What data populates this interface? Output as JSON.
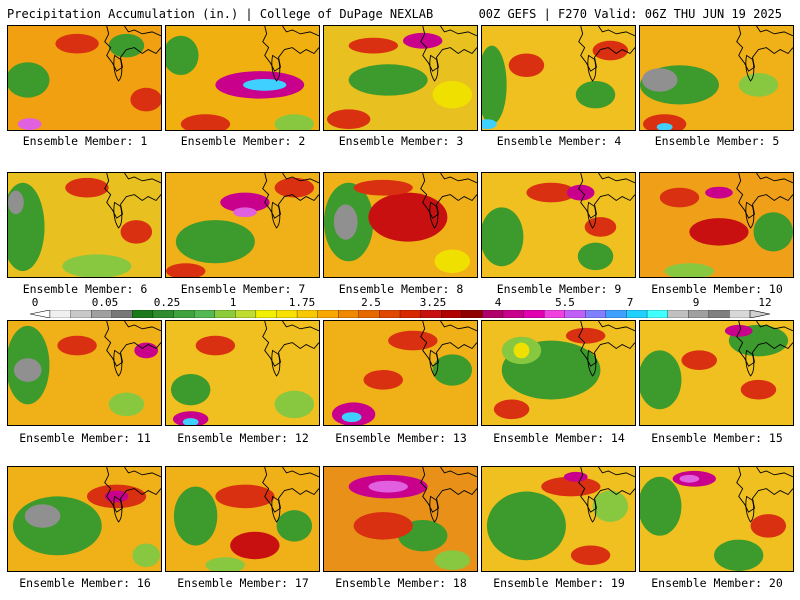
{
  "header": {
    "left": "Precipitation Accumulation (in.) | College of DuPage NEXLAB",
    "right": "00Z GEFS | F270 Valid: 06Z THU JUN 19 2025"
  },
  "scale": {
    "labels": [
      "0",
      "0.05",
      "0.25",
      "1",
      "1.75",
      "2.5",
      "3.25",
      "4",
      "5.5",
      "7",
      "9",
      "12"
    ],
    "colors": [
      "#f0f0f0",
      "#c8c8c8",
      "#a0a0a0",
      "#787878",
      "#1a7a1a",
      "#2e8b2e",
      "#3fa33f",
      "#55b855",
      "#8ccc3a",
      "#c0dc30",
      "#f0f000",
      "#f8e000",
      "#f8c800",
      "#f8a800",
      "#f08800",
      "#e86800",
      "#e04800",
      "#d82800",
      "#c81010",
      "#b00000",
      "#900000",
      "#b0006a",
      "#c8008c",
      "#e000b0",
      "#f040e0",
      "#c060f8",
      "#8080ff",
      "#40a0ff",
      "#20d0ff",
      "#40ffff",
      "#c0c0c0",
      "#a0a0a0",
      "#808080",
      "#d8d8d8"
    ]
  },
  "members": [
    {
      "label": "Ensemble Member: 1",
      "base": "#f0a010",
      "blobs": [
        [
          "#3c9b2c",
          20,
          55,
          22,
          18
        ],
        [
          "#3c9b2c",
          120,
          20,
          18,
          12
        ],
        [
          "#d83010",
          70,
          18,
          22,
          10
        ],
        [
          "#d83010",
          140,
          75,
          16,
          12
        ],
        [
          "#e060e0",
          22,
          100,
          12,
          6
        ]
      ]
    },
    {
      "label": "Ensemble Member: 2",
      "base": "#f0b010",
      "blobs": [
        [
          "#3c9b2c",
          15,
          30,
          18,
          20
        ],
        [
          "#c8008c",
          95,
          60,
          45,
          14
        ],
        [
          "#40d0ff",
          100,
          60,
          22,
          6
        ],
        [
          "#d83010",
          40,
          100,
          25,
          10
        ],
        [
          "#88c840",
          130,
          100,
          20,
          10
        ]
      ]
    },
    {
      "label": "Ensemble Member: 3",
      "base": "#e8c020",
      "blobs": [
        [
          "#3c9b2c",
          65,
          55,
          40,
          16
        ],
        [
          "#c8008c",
          100,
          15,
          20,
          8
        ],
        [
          "#d83010",
          50,
          20,
          25,
          8
        ],
        [
          "#d83010",
          25,
          95,
          22,
          10
        ],
        [
          "#f0e000",
          130,
          70,
          20,
          14
        ]
      ]
    },
    {
      "label": "Ensemble Member: 4",
      "base": "#f0c020",
      "blobs": [
        [
          "#3c9b2c",
          10,
          60,
          15,
          40
        ],
        [
          "#3c9b2c",
          115,
          70,
          20,
          14
        ],
        [
          "#d83010",
          45,
          40,
          18,
          12
        ],
        [
          "#d83010",
          130,
          25,
          18,
          10
        ],
        [
          "#40d0ff",
          5,
          100,
          10,
          5
        ]
      ]
    },
    {
      "label": "Ensemble Member: 5",
      "base": "#f0b018",
      "blobs": [
        [
          "#3c9b2c",
          40,
          60,
          40,
          20
        ],
        [
          "#909090",
          20,
          55,
          18,
          12
        ],
        [
          "#88c840",
          120,
          60,
          20,
          12
        ],
        [
          "#d83010",
          25,
          100,
          22,
          10
        ],
        [
          "#40d0ff",
          25,
          103,
          8,
          4
        ]
      ]
    },
    {
      "label": "Ensemble Member: 6",
      "base": "#e8c020",
      "blobs": [
        [
          "#3c9b2c",
          15,
          55,
          22,
          45
        ],
        [
          "#909090",
          8,
          30,
          8,
          12
        ],
        [
          "#d83010",
          80,
          15,
          22,
          10
        ],
        [
          "#d83010",
          130,
          60,
          16,
          12
        ],
        [
          "#88c840",
          90,
          95,
          35,
          12
        ]
      ]
    },
    {
      "label": "Ensemble Member: 7",
      "base": "#f0b018",
      "blobs": [
        [
          "#3c9b2c",
          50,
          70,
          40,
          22
        ],
        [
          "#c8008c",
          80,
          30,
          25,
          10
        ],
        [
          "#e060e0",
          80,
          40,
          12,
          5
        ],
        [
          "#d83010",
          130,
          15,
          20,
          10
        ],
        [
          "#d83010",
          20,
          100,
          20,
          8
        ]
      ]
    },
    {
      "label": "Ensemble Member: 8",
      "base": "#f0b018",
      "blobs": [
        [
          "#3c9b2c",
          25,
          50,
          25,
          40
        ],
        [
          "#909090",
          22,
          50,
          12,
          18
        ],
        [
          "#c81010",
          85,
          45,
          40,
          25
        ],
        [
          "#f0e000",
          130,
          90,
          18,
          12
        ],
        [
          "#d83010",
          60,
          15,
          30,
          8
        ]
      ]
    },
    {
      "label": "Ensemble Member: 9",
      "base": "#f0c020",
      "blobs": [
        [
          "#3c9b2c",
          20,
          65,
          22,
          30
        ],
        [
          "#3c9b2c",
          115,
          85,
          18,
          14
        ],
        [
          "#d83010",
          70,
          20,
          25,
          10
        ],
        [
          "#c8008c",
          100,
          20,
          14,
          8
        ],
        [
          "#d83010",
          120,
          55,
          16,
          10
        ]
      ]
    },
    {
      "label": "Ensemble Member: 10",
      "base": "#f0a018",
      "blobs": [
        [
          "#3c9b2c",
          135,
          60,
          20,
          20
        ],
        [
          "#d83010",
          40,
          25,
          20,
          10
        ],
        [
          "#c81010",
          80,
          60,
          30,
          14
        ],
        [
          "#c8008c",
          80,
          20,
          14,
          6
        ],
        [
          "#88c840",
          50,
          100,
          25,
          8
        ]
      ]
    },
    {
      "label": "Ensemble Member: 11",
      "base": "#f0b018",
      "blobs": [
        [
          "#3c9b2c",
          20,
          45,
          22,
          40
        ],
        [
          "#909090",
          20,
          50,
          14,
          12
        ],
        [
          "#d83010",
          70,
          25,
          20,
          10
        ],
        [
          "#c8008c",
          140,
          30,
          12,
          8
        ],
        [
          "#88c840",
          120,
          85,
          18,
          12
        ]
      ]
    },
    {
      "label": "Ensemble Member: 12",
      "base": "#f0c020",
      "blobs": [
        [
          "#3c9b2c",
          25,
          70,
          20,
          16
        ],
        [
          "#88c840",
          130,
          85,
          20,
          14
        ],
        [
          "#d83010",
          50,
          25,
          20,
          10
        ],
        [
          "#c8008c",
          25,
          100,
          18,
          8
        ],
        [
          "#40d0ff",
          25,
          103,
          8,
          4
        ]
      ]
    },
    {
      "label": "Ensemble Member: 13",
      "base": "#f0b018",
      "blobs": [
        [
          "#3c9b2c",
          130,
          50,
          20,
          16
        ],
        [
          "#c8008c",
          30,
          95,
          22,
          12
        ],
        [
          "#40d0ff",
          28,
          98,
          10,
          5
        ],
        [
          "#d83010",
          90,
          20,
          25,
          10
        ],
        [
          "#d83010",
          60,
          60,
          20,
          10
        ]
      ]
    },
    {
      "label": "Ensemble Member: 14",
      "base": "#f0c020",
      "blobs": [
        [
          "#3c9b2c",
          70,
          50,
          50,
          30
        ],
        [
          "#88c840",
          40,
          30,
          20,
          14
        ],
        [
          "#d83010",
          105,
          15,
          20,
          8
        ],
        [
          "#d83010",
          30,
          90,
          18,
          10
        ],
        [
          "#f0e000",
          40,
          30,
          8,
          8
        ]
      ]
    },
    {
      "label": "Ensemble Member: 15",
      "base": "#f0c020",
      "blobs": [
        [
          "#3c9b2c",
          20,
          60,
          22,
          30
        ],
        [
          "#3c9b2c",
          120,
          20,
          30,
          16
        ],
        [
          "#d83010",
          60,
          40,
          18,
          10
        ],
        [
          "#d83010",
          120,
          70,
          18,
          10
        ],
        [
          "#c8008c",
          100,
          10,
          14,
          6
        ]
      ]
    },
    {
      "label": "Ensemble Member: 16",
      "base": "#f0b018",
      "blobs": [
        [
          "#3c9b2c",
          50,
          60,
          45,
          30
        ],
        [
          "#909090",
          35,
          50,
          18,
          12
        ],
        [
          "#d83010",
          110,
          30,
          30,
          12
        ],
        [
          "#c8008c",
          110,
          30,
          12,
          6
        ],
        [
          "#88c840",
          140,
          90,
          14,
          12
        ]
      ]
    },
    {
      "label": "Ensemble Member: 17",
      "base": "#f0b018",
      "blobs": [
        [
          "#3c9b2c",
          30,
          50,
          22,
          30
        ],
        [
          "#3c9b2c",
          130,
          60,
          18,
          16
        ],
        [
          "#d83010",
          80,
          30,
          30,
          12
        ],
        [
          "#c81010",
          90,
          80,
          25,
          14
        ],
        [
          "#88c840",
          60,
          100,
          20,
          8
        ]
      ]
    },
    {
      "label": "Ensemble Member: 18",
      "base": "#e89018",
      "blobs": [
        [
          "#3c9b2c",
          100,
          70,
          25,
          16
        ],
        [
          "#c8008c",
          65,
          20,
          40,
          12
        ],
        [
          "#e060e0",
          65,
          20,
          20,
          6
        ],
        [
          "#d83010",
          60,
          60,
          30,
          14
        ],
        [
          "#88c840",
          130,
          95,
          18,
          10
        ]
      ]
    },
    {
      "label": "Ensemble Member: 19",
      "base": "#f0c020",
      "blobs": [
        [
          "#3c9b2c",
          45,
          60,
          40,
          35
        ],
        [
          "#88c840",
          130,
          40,
          18,
          16
        ],
        [
          "#d83010",
          90,
          20,
          30,
          10
        ],
        [
          "#c8008c",
          95,
          10,
          12,
          5
        ],
        [
          "#d83010",
          110,
          90,
          20,
          10
        ]
      ]
    },
    {
      "label": "Ensemble Member: 20",
      "base": "#f0c020",
      "blobs": [
        [
          "#3c9b2c",
          20,
          40,
          22,
          30
        ],
        [
          "#3c9b2c",
          100,
          90,
          25,
          16
        ],
        [
          "#c8008c",
          55,
          12,
          22,
          8
        ],
        [
          "#e060e0",
          50,
          12,
          10,
          4
        ],
        [
          "#d83010",
          130,
          60,
          18,
          12
        ]
      ]
    }
  ]
}
